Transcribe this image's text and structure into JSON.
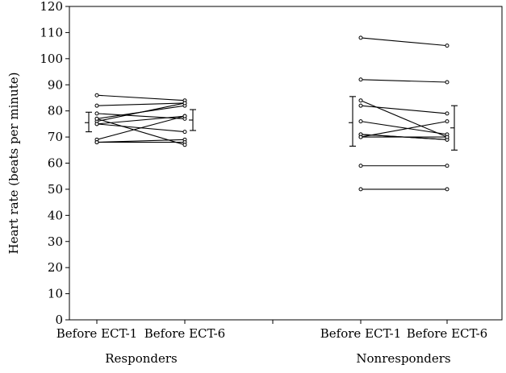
{
  "chart_data": {
    "type": "line",
    "ylabel": "Heart rate (beats per minute)",
    "ylim": [
      0,
      120
    ],
    "yticks": [
      0,
      10,
      20,
      30,
      40,
      50,
      60,
      70,
      80,
      90,
      100,
      110,
      120
    ],
    "grid": false,
    "legend": "none",
    "groups": [
      {
        "name": "Responders",
        "categories": [
          "Before ECT-1",
          "Before ECT-6"
        ],
        "pairs": [
          [
            86,
            84
          ],
          [
            82,
            83
          ],
          [
            79,
            77
          ],
          [
            77,
            82
          ],
          [
            76,
            83
          ],
          [
            75,
            78
          ],
          [
            75,
            72
          ],
          [
            69,
            78
          ],
          [
            68,
            69
          ],
          [
            68,
            68
          ],
          [
            77,
            67
          ]
        ],
        "summary": [
          {
            "mean": 75.5,
            "low": 72,
            "high": 79.5
          },
          {
            "mean": 76.5,
            "low": 72.5,
            "high": 80.5
          }
        ]
      },
      {
        "name": "Nonresponders",
        "categories": [
          "Before ECT-1",
          "Before ECT-6"
        ],
        "pairs": [
          [
            108,
            105
          ],
          [
            92,
            91
          ],
          [
            84,
            70
          ],
          [
            82,
            79
          ],
          [
            76,
            71
          ],
          [
            71,
            69
          ],
          [
            71,
            69
          ],
          [
            70,
            76
          ],
          [
            70,
            70
          ],
          [
            59,
            59
          ],
          [
            50,
            50
          ]
        ],
        "summary": [
          {
            "mean": 75.5,
            "low": 66.5,
            "high": 85.5
          },
          {
            "mean": 73.5,
            "low": 65,
            "high": 82
          }
        ]
      }
    ]
  }
}
